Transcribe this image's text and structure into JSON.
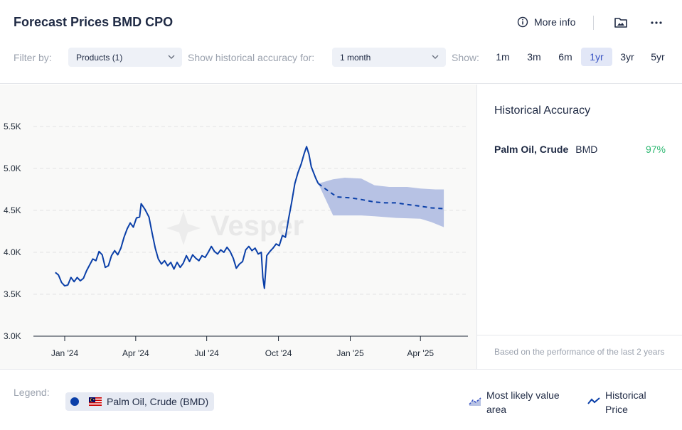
{
  "header": {
    "title": "Forecast Prices BMD CPO",
    "more_info": "More info",
    "filter_label": "Filter by:",
    "products_select": "Products (1)",
    "accuracy_label": "Show historical accuracy for:",
    "accuracy_select": "1 month",
    "show_label": "Show:",
    "ranges": [
      "1m",
      "3m",
      "6m",
      "1yr",
      "3yr",
      "5yr"
    ],
    "active_range": "1yr"
  },
  "colors": {
    "series": "#0a3fa8",
    "band": "#b7c2e4",
    "accent": "#3b55c4",
    "positive": "#2eb872"
  },
  "chart_data": {
    "type": "line",
    "watermark": "Vesper",
    "x_ticks": [
      "Jan '24",
      "Apr '24",
      "Jul '24",
      "Oct '24",
      "Jan '25",
      "Apr '25"
    ],
    "y_ticks": [
      "3.0K",
      "3.5K",
      "4.0K",
      "4.5K",
      "5.0K",
      "5.5K"
    ],
    "ylim": [
      3000,
      5700
    ],
    "grid": "horizontal dashed",
    "series": [
      {
        "name": "Historical Price",
        "style": "solid",
        "points": [
          [
            "2023-12-20",
            3760
          ],
          [
            "2023-12-24",
            3730
          ],
          [
            "2023-12-28",
            3640
          ],
          [
            "2024-01-01",
            3600
          ],
          [
            "2024-01-05",
            3610
          ],
          [
            "2024-01-09",
            3700
          ],
          [
            "2024-01-13",
            3650
          ],
          [
            "2024-01-17",
            3700
          ],
          [
            "2024-01-21",
            3660
          ],
          [
            "2024-01-25",
            3690
          ],
          [
            "2024-01-29",
            3780
          ],
          [
            "2024-02-02",
            3850
          ],
          [
            "2024-02-06",
            3920
          ],
          [
            "2024-02-10",
            3900
          ],
          [
            "2024-02-14",
            4010
          ],
          [
            "2024-02-18",
            3970
          ],
          [
            "2024-02-22",
            3820
          ],
          [
            "2024-02-26",
            3840
          ],
          [
            "2024-03-01",
            3960
          ],
          [
            "2024-03-05",
            4020
          ],
          [
            "2024-03-09",
            3970
          ],
          [
            "2024-03-13",
            4050
          ],
          [
            "2024-03-17",
            4180
          ],
          [
            "2024-03-21",
            4280
          ],
          [
            "2024-03-25",
            4350
          ],
          [
            "2024-03-29",
            4300
          ],
          [
            "2024-04-02",
            4410
          ],
          [
            "2024-04-06",
            4420
          ],
          [
            "2024-04-08",
            4580
          ],
          [
            "2024-04-13",
            4510
          ],
          [
            "2024-04-18",
            4420
          ],
          [
            "2024-04-22",
            4230
          ],
          [
            "2024-04-26",
            4050
          ],
          [
            "2024-04-30",
            3920
          ],
          [
            "2024-05-04",
            3860
          ],
          [
            "2024-05-08",
            3900
          ],
          [
            "2024-05-12",
            3840
          ],
          [
            "2024-05-16",
            3880
          ],
          [
            "2024-05-20",
            3800
          ],
          [
            "2024-05-24",
            3880
          ],
          [
            "2024-05-28",
            3820
          ],
          [
            "2024-06-01",
            3870
          ],
          [
            "2024-06-05",
            3960
          ],
          [
            "2024-06-09",
            3890
          ],
          [
            "2024-06-13",
            3970
          ],
          [
            "2024-06-17",
            3930
          ],
          [
            "2024-06-21",
            3900
          ],
          [
            "2024-06-25",
            3960
          ],
          [
            "2024-06-29",
            3940
          ],
          [
            "2024-07-03",
            4000
          ],
          [
            "2024-07-07",
            4070
          ],
          [
            "2024-07-11",
            4010
          ],
          [
            "2024-07-15",
            3980
          ],
          [
            "2024-07-19",
            4030
          ],
          [
            "2024-07-23",
            4000
          ],
          [
            "2024-07-27",
            4060
          ],
          [
            "2024-07-31",
            4010
          ],
          [
            "2024-08-04",
            3930
          ],
          [
            "2024-08-08",
            3810
          ],
          [
            "2024-08-12",
            3860
          ],
          [
            "2024-08-16",
            3890
          ],
          [
            "2024-08-20",
            4030
          ],
          [
            "2024-08-24",
            4070
          ],
          [
            "2024-08-28",
            4020
          ],
          [
            "2024-09-01",
            4050
          ],
          [
            "2024-09-05",
            3980
          ],
          [
            "2024-09-09",
            4000
          ],
          [
            "2024-09-11",
            3700
          ],
          [
            "2024-09-13",
            3570
          ],
          [
            "2024-09-16",
            3960
          ],
          [
            "2024-09-20",
            4010
          ],
          [
            "2024-09-24",
            4050
          ],
          [
            "2024-09-28",
            4100
          ],
          [
            "2024-10-02",
            4080
          ],
          [
            "2024-10-06",
            4200
          ],
          [
            "2024-10-10",
            4180
          ],
          [
            "2024-10-14",
            4400
          ],
          [
            "2024-10-18",
            4600
          ],
          [
            "2024-10-22",
            4820
          ],
          [
            "2024-10-26",
            4950
          ],
          [
            "2024-10-30",
            5050
          ],
          [
            "2024-11-03",
            5180
          ],
          [
            "2024-11-06",
            5260
          ],
          [
            "2024-11-09",
            5170
          ],
          [
            "2024-11-12",
            5020
          ],
          [
            "2024-11-15",
            4950
          ],
          [
            "2024-11-18",
            4880
          ],
          [
            "2024-11-21",
            4820
          ]
        ]
      },
      {
        "name": "Forecast",
        "style": "dashed",
        "points": [
          [
            "2024-11-21",
            4820
          ],
          [
            "2024-12-01",
            4750
          ],
          [
            "2024-12-15",
            4660
          ],
          [
            "2025-01-01",
            4650
          ],
          [
            "2025-01-15",
            4630
          ],
          [
            "2025-02-01",
            4600
          ],
          [
            "2025-02-15",
            4590
          ],
          [
            "2025-03-01",
            4590
          ],
          [
            "2025-03-15",
            4570
          ],
          [
            "2025-04-01",
            4550
          ],
          [
            "2025-04-15",
            4530
          ],
          [
            "2025-05-01",
            4520
          ]
        ]
      }
    ],
    "band": {
      "name": "Most likely value area",
      "upper": [
        [
          "2024-11-21",
          4820
        ],
        [
          "2024-12-10",
          4870
        ],
        [
          "2024-12-25",
          4890
        ],
        [
          "2025-01-15",
          4880
        ],
        [
          "2025-02-01",
          4800
        ],
        [
          "2025-02-20",
          4780
        ],
        [
          "2025-03-15",
          4780
        ],
        [
          "2025-04-01",
          4760
        ],
        [
          "2025-04-20",
          4750
        ],
        [
          "2025-05-01",
          4750
        ]
      ],
      "lower": [
        [
          "2025-05-01",
          4300
        ],
        [
          "2025-04-15",
          4360
        ],
        [
          "2025-04-01",
          4400
        ],
        [
          "2025-03-01",
          4410
        ],
        [
          "2025-02-01",
          4430
        ],
        [
          "2025-01-15",
          4440
        ],
        [
          "2025-01-01",
          4440
        ],
        [
          "2024-12-10",
          4440
        ],
        [
          "2024-11-21",
          4820
        ]
      ]
    }
  },
  "side": {
    "title": "Historical Accuracy",
    "row": {
      "name": "Palm Oil, Crude",
      "exchange": "BMD",
      "value": "97%"
    },
    "footnote": "Based on the performance of the last 2 years"
  },
  "legend": {
    "label": "Legend:",
    "chip": "Palm Oil, Crude (BMD)",
    "band_line1": "Most likely value",
    "band_line2": "area",
    "hist_line1": "Historical",
    "hist_line2": "Price"
  }
}
